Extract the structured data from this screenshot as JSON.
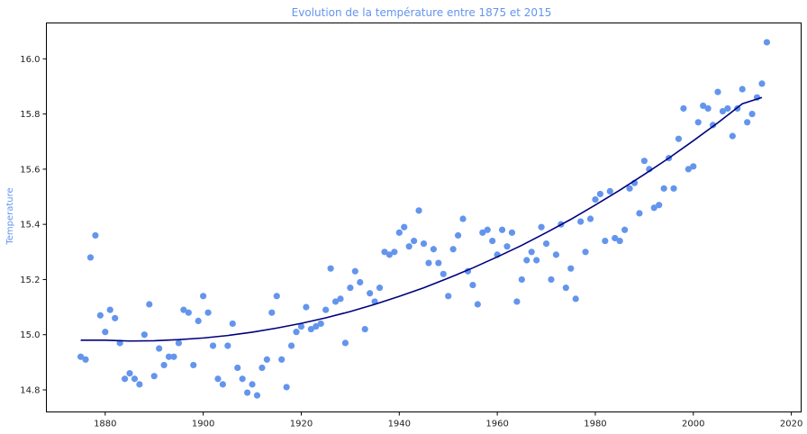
{
  "chart_data": {
    "type": "scatter",
    "title": "Evolution de la température entre 1875 et 2015",
    "xlabel": "",
    "ylabel": "Temperature",
    "xlim": [
      1868,
      2022
    ],
    "ylim": [
      14.72,
      16.13
    ],
    "x_ticks": [
      1880,
      1900,
      1920,
      1940,
      1960,
      1980,
      2000,
      2020
    ],
    "y_ticks": [
      14.8,
      15.0,
      15.2,
      15.4,
      15.6,
      15.8,
      16.0
    ],
    "grid": false,
    "colors": {
      "points": "#6495ED",
      "trend": "#00007F",
      "title": "#6495ED",
      "ylabel": "#6495ED"
    },
    "series": [
      {
        "kind": "scatter",
        "x": [
          1875,
          1876,
          1877,
          1878,
          1879,
          1880,
          1881,
          1882,
          1883,
          1884,
          1885,
          1886,
          1887,
          1888,
          1889,
          1890,
          1891,
          1892,
          1893,
          1894,
          1895,
          1896,
          1897,
          1898,
          1899,
          1900,
          1901,
          1902,
          1903,
          1904,
          1905,
          1906,
          1907,
          1908,
          1909,
          1910,
          1911,
          1912,
          1913,
          1914,
          1915,
          1916,
          1917,
          1918,
          1919,
          1920,
          1921,
          1922,
          1923,
          1924,
          1925,
          1926,
          1927,
          1928,
          1929,
          1930,
          1931,
          1932,
          1933,
          1934,
          1935,
          1936,
          1937,
          1938,
          1939,
          1940,
          1941,
          1942,
          1943,
          1944,
          1945,
          1946,
          1947,
          1948,
          1949,
          1950,
          1951,
          1952,
          1953,
          1954,
          1955,
          1956,
          1957,
          1958,
          1959,
          1960,
          1961,
          1962,
          1963,
          1964,
          1965,
          1966,
          1967,
          1968,
          1969,
          1970,
          1971,
          1972,
          1973,
          1974,
          1975,
          1976,
          1977,
          1978,
          1979,
          1980,
          1981,
          1982,
          1983,
          1984,
          1985,
          1986,
          1987,
          1988,
          1989,
          1990,
          1991,
          1992,
          1993,
          1994,
          1995,
          1996,
          1997,
          1998,
          1999,
          2000,
          2001,
          2002,
          2003,
          2004,
          2005,
          2006,
          2007,
          2008,
          2009,
          2010,
          2011,
          2012,
          2013,
          2014,
          2015
        ],
        "y": [
          14.92,
          14.91,
          15.28,
          15.36,
          15.07,
          15.01,
          15.09,
          15.06,
          14.97,
          14.84,
          14.86,
          14.84,
          14.82,
          15.0,
          15.11,
          14.85,
          14.95,
          14.89,
          14.92,
          14.92,
          14.97,
          15.09,
          15.08,
          14.89,
          15.05,
          15.14,
          15.08,
          14.96,
          14.84,
          14.82,
          14.96,
          15.04,
          14.88,
          14.84,
          14.79,
          14.82,
          14.78,
          14.88,
          14.91,
          15.08,
          15.14,
          14.91,
          14.81,
          14.96,
          15.01,
          15.03,
          15.1,
          15.02,
          15.03,
          15.04,
          15.09,
          15.24,
          15.12,
          15.13,
          14.97,
          15.17,
          15.23,
          15.19,
          15.02,
          15.15,
          15.12,
          15.17,
          15.3,
          15.29,
          15.3,
          15.37,
          15.39,
          15.32,
          15.34,
          15.45,
          15.33,
          15.26,
          15.31,
          15.26,
          15.22,
          15.14,
          15.31,
          15.36,
          15.42,
          15.23,
          15.18,
          15.11,
          15.37,
          15.38,
          15.34,
          15.29,
          15.38,
          15.32,
          15.37,
          15.12,
          15.2,
          15.27,
          15.3,
          15.27,
          15.39,
          15.33,
          15.2,
          15.29,
          15.4,
          15.17,
          15.24,
          15.13,
          15.41,
          15.3,
          15.42,
          15.49,
          15.51,
          15.34,
          15.52,
          15.35,
          15.34,
          15.38,
          15.53,
          15.55,
          15.44,
          15.63,
          15.6,
          15.46,
          15.47,
          15.53,
          15.64,
          15.53,
          15.71,
          15.82,
          15.6,
          15.61,
          15.77,
          15.83,
          15.82,
          15.76,
          15.88,
          15.81,
          15.82,
          15.72,
          15.82,
          15.89,
          15.77,
          15.8,
          15.86,
          15.91,
          16.06
        ]
      },
      {
        "kind": "line",
        "x": [
          1875,
          1880,
          1885,
          1890,
          1895,
          1900,
          1905,
          1910,
          1915,
          1920,
          1925,
          1930,
          1935,
          1940,
          1945,
          1950,
          1955,
          1960,
          1965,
          1970,
          1975,
          1980,
          1985,
          1990,
          1995,
          2000,
          2005,
          2010,
          2014
        ],
        "y": [
          14.98,
          14.98,
          14.977,
          14.978,
          14.982,
          14.988,
          14.997,
          15.009,
          15.024,
          15.041,
          15.061,
          15.084,
          15.11,
          15.139,
          15.17,
          15.205,
          15.242,
          15.282,
          15.324,
          15.37,
          15.418,
          15.47,
          15.524,
          15.581,
          15.64,
          15.703,
          15.768,
          15.837,
          15.86
        ]
      }
    ]
  }
}
